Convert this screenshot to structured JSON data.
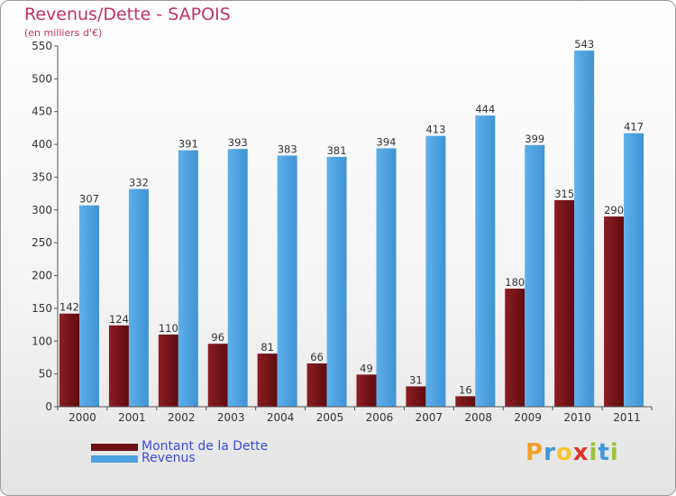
{
  "title": "Revenus/Dette - SAPOIS",
  "subtitle": "(en milliers d'€)",
  "legend": {
    "debt_label": "Montant de la Dette",
    "revenue_label": "Revenus"
  },
  "logo": {
    "text": "Proxiti",
    "letters": [
      "P",
      "r",
      "o",
      "x",
      "i",
      "t",
      "i"
    ],
    "colors": [
      "#f2a02b",
      "#3f98d9",
      "#f4c530",
      "#e0352b",
      "#9bc23b",
      "#3f98d9",
      "#9bc23b"
    ]
  },
  "colors": {
    "debt": "#7a1218",
    "revenue": "#4ea2e0",
    "title": "#c0326a",
    "legend_text": "#3a4cd8"
  },
  "chart_data": {
    "type": "bar",
    "categories": [
      "2000",
      "2001",
      "2002",
      "2003",
      "2004",
      "2005",
      "2006",
      "2007",
      "2008",
      "2009",
      "2010",
      "2011"
    ],
    "series": [
      {
        "name": "Montant de la Dette",
        "values": [
          142,
          124,
          110,
          96,
          81,
          66,
          49,
          31,
          16,
          180,
          315,
          290
        ]
      },
      {
        "name": "Revenus",
        "values": [
          307,
          332,
          391,
          393,
          383,
          381,
          394,
          413,
          444,
          399,
          543,
          417
        ]
      }
    ],
    "yticks": [
      0,
      50,
      100,
      150,
      200,
      250,
      300,
      350,
      400,
      450,
      500,
      550
    ],
    "ylim": [
      0,
      550
    ],
    "grid": false,
    "legend_position": "bottom-left"
  }
}
